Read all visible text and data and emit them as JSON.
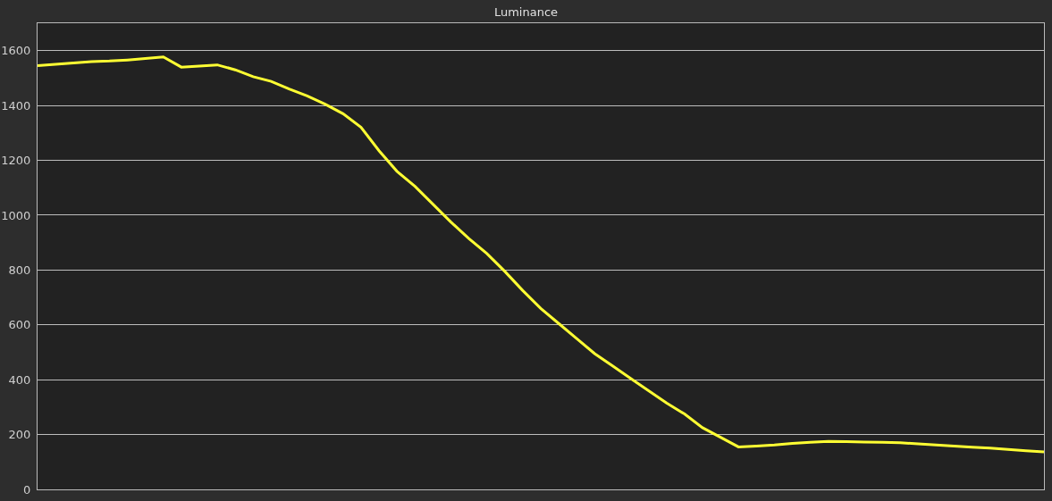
{
  "chart_data": {
    "type": "line",
    "title": "Luminance",
    "categories": [
      null,
      null,
      null,
      null,
      null,
      null,
      null,
      null,
      null,
      null,
      null,
      null,
      null,
      null,
      null,
      null,
      null,
      null,
      null,
      null,
      null,
      null,
      null,
      null,
      null,
      null,
      null,
      null,
      null,
      null,
      null,
      null,
      null,
      null,
      null,
      null,
      null,
      null,
      null,
      null,
      null,
      null,
      null,
      null,
      null,
      null,
      null,
      null,
      null,
      null,
      null,
      null,
      null,
      null,
      null,
      null,
      null
    ],
    "series": [
      {
        "color": "#ffff33",
        "values": [
          1545,
          1550,
          1555,
          1560,
          1562,
          1566,
          1571,
          1577,
          1540,
          1544,
          1548,
          1530,
          1505,
          1488,
          1460,
          1435,
          1405,
          1370,
          1320,
          1235,
          1160,
          1105,
          1040,
          975,
          915,
          860,
          795,
          725,
          660,
          605,
          550,
          495,
          450,
          405,
          360,
          315,
          275,
          225,
          190,
          155,
          158,
          162,
          168,
          172,
          175,
          174,
          173,
          172,
          170,
          166,
          162,
          158,
          154,
          151,
          146,
          141,
          137
        ]
      }
    ],
    "ylim": [
      0,
      1700
    ],
    "yticks": [
      0,
      200,
      400,
      600,
      800,
      1000,
      1200,
      1400,
      1600
    ],
    "grid": "y",
    "marker": "none",
    "line_style": "solid",
    "tick_labels": "y"
  }
}
